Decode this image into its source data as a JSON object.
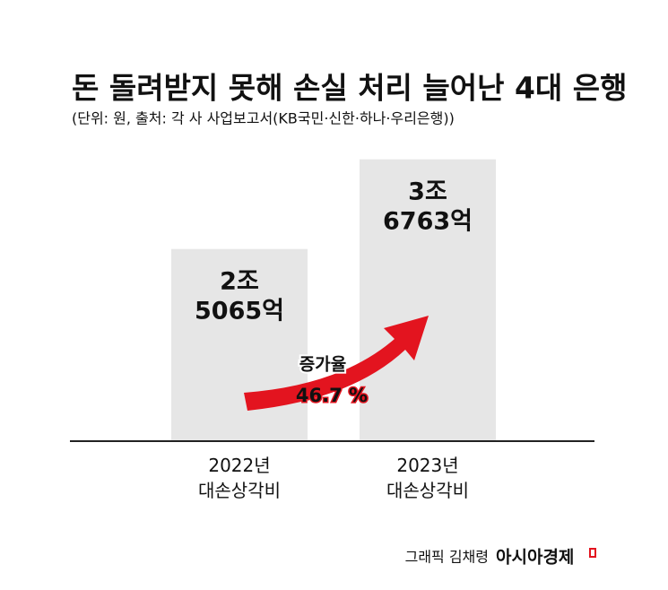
{
  "chart_data": {
    "type": "bar",
    "title": "돈 돌려받지 못해 손실 처리 늘어난 4대 은행",
    "subtitle": "(단위: 원, 출처: 각 사 사업보고서(KB국민·신한·하나·우리은행))",
    "categories": [
      "2022년\n대손상각비",
      "2023년\n대손상각비"
    ],
    "values": [
      25065,
      36763
    ],
    "value_labels": [
      "2조\n5065억",
      "3조\n6763억"
    ],
    "color": "#e6e6e6",
    "ylim": [
      0,
      40000
    ],
    "annotations": [
      "증가율",
      "46.7 %"
    ],
    "credit": "그래픽 김채령",
    "brand": "아시아경제"
  }
}
